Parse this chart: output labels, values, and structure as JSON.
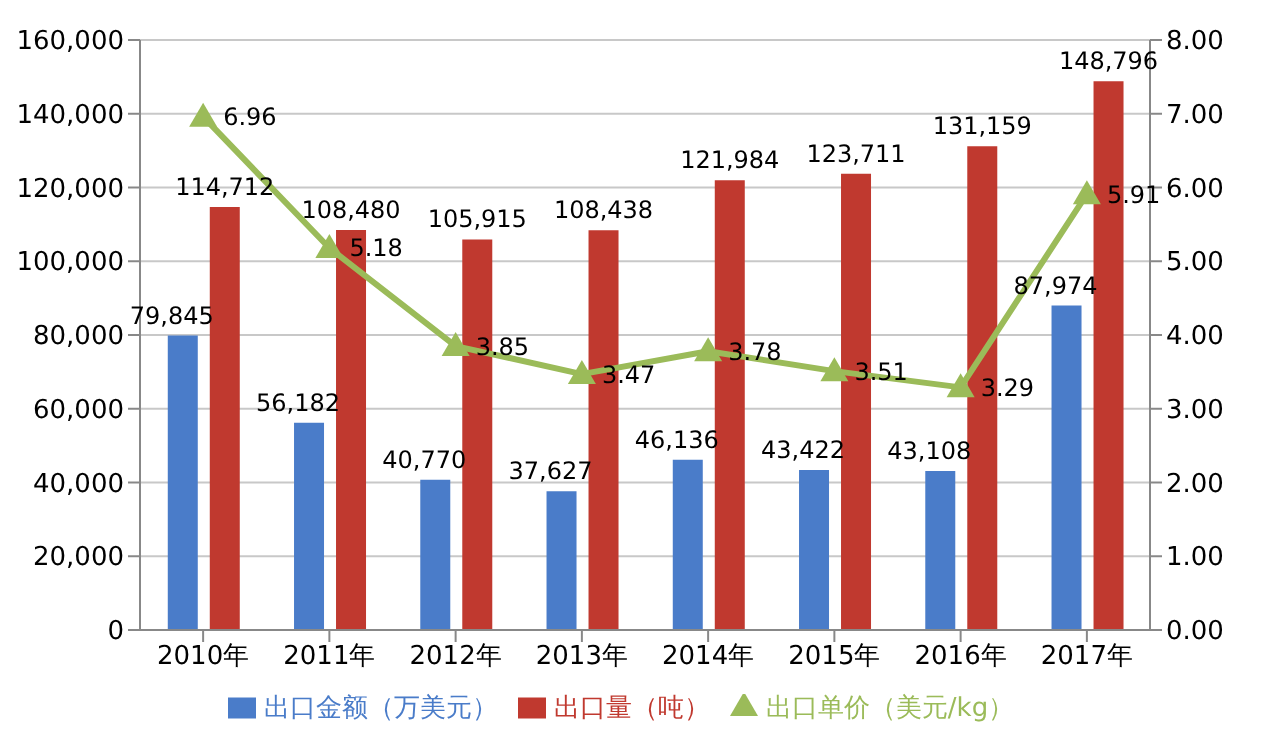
{
  "chart_data": {
    "type": "bar",
    "categories": [
      "2010年",
      "2011年",
      "2012年",
      "2013年",
      "2014年",
      "2015年",
      "2016年",
      "2017年"
    ],
    "series": [
      {
        "name": "出口金额（万美元）",
        "color": "#4a7cc9",
        "values": [
          79845,
          56182,
          40770,
          37627,
          46136,
          43422,
          43108,
          87974
        ],
        "value_labels": [
          "79,845",
          "56,182",
          "40,770",
          "37,627",
          "46,136",
          "43,422",
          "43,108",
          "87,974"
        ]
      },
      {
        "name": "出口量（吨）",
        "color": "#c0392f",
        "values": [
          114712,
          108480,
          105915,
          108438,
          121984,
          123711,
          131159,
          148796
        ],
        "value_labels": [
          "114,712",
          "108,480",
          "105,915",
          "108,438",
          "121,984",
          "123,711",
          "131,159",
          "148,796"
        ]
      },
      {
        "name": "出口单价（美元/kg）",
        "type": "line",
        "axis": "y2",
        "color": "#9bbb59",
        "marker": "triangle",
        "values": [
          6.96,
          5.18,
          3.85,
          3.47,
          3.78,
          3.51,
          3.29,
          5.91
        ],
        "value_labels": [
          "6.96",
          "5.18",
          "3.85",
          "3.47",
          "3.78",
          "3.51",
          "3.29",
          "5.91"
        ]
      }
    ],
    "ylim": [
      0,
      160000
    ],
    "yticks": [
      0,
      {
        "value": 20000,
        "label": "20,000"
      },
      {
        "value": 40000,
        "label": "40,000"
      },
      {
        "value": 60000,
        "label": "60,000"
      },
      {
        "value": 80000,
        "label": "80,000"
      },
      {
        "value": 100000,
        "label": "100,000"
      },
      {
        "value": 120000,
        "label": "120,000"
      },
      {
        "value": 140000,
        "label": "140,000"
      },
      {
        "value": 160000,
        "label": "160,000"
      }
    ],
    "y2lim": [
      0,
      8
    ],
    "y2ticks": [
      {
        "value": 0,
        "label": "0.00"
      },
      {
        "value": 1,
        "label": "1.00"
      },
      {
        "value": 2,
        "label": "2.00"
      },
      {
        "value": 3,
        "label": "3.00"
      },
      {
        "value": 4,
        "label": "4.00"
      },
      {
        "value": 5,
        "label": "5.00"
      },
      {
        "value": 6,
        "label": "6.00"
      },
      {
        "value": 7,
        "label": "7.00"
      },
      {
        "value": 8,
        "label": "8.00"
      }
    ],
    "grid": "y",
    "legend": "bottom"
  }
}
